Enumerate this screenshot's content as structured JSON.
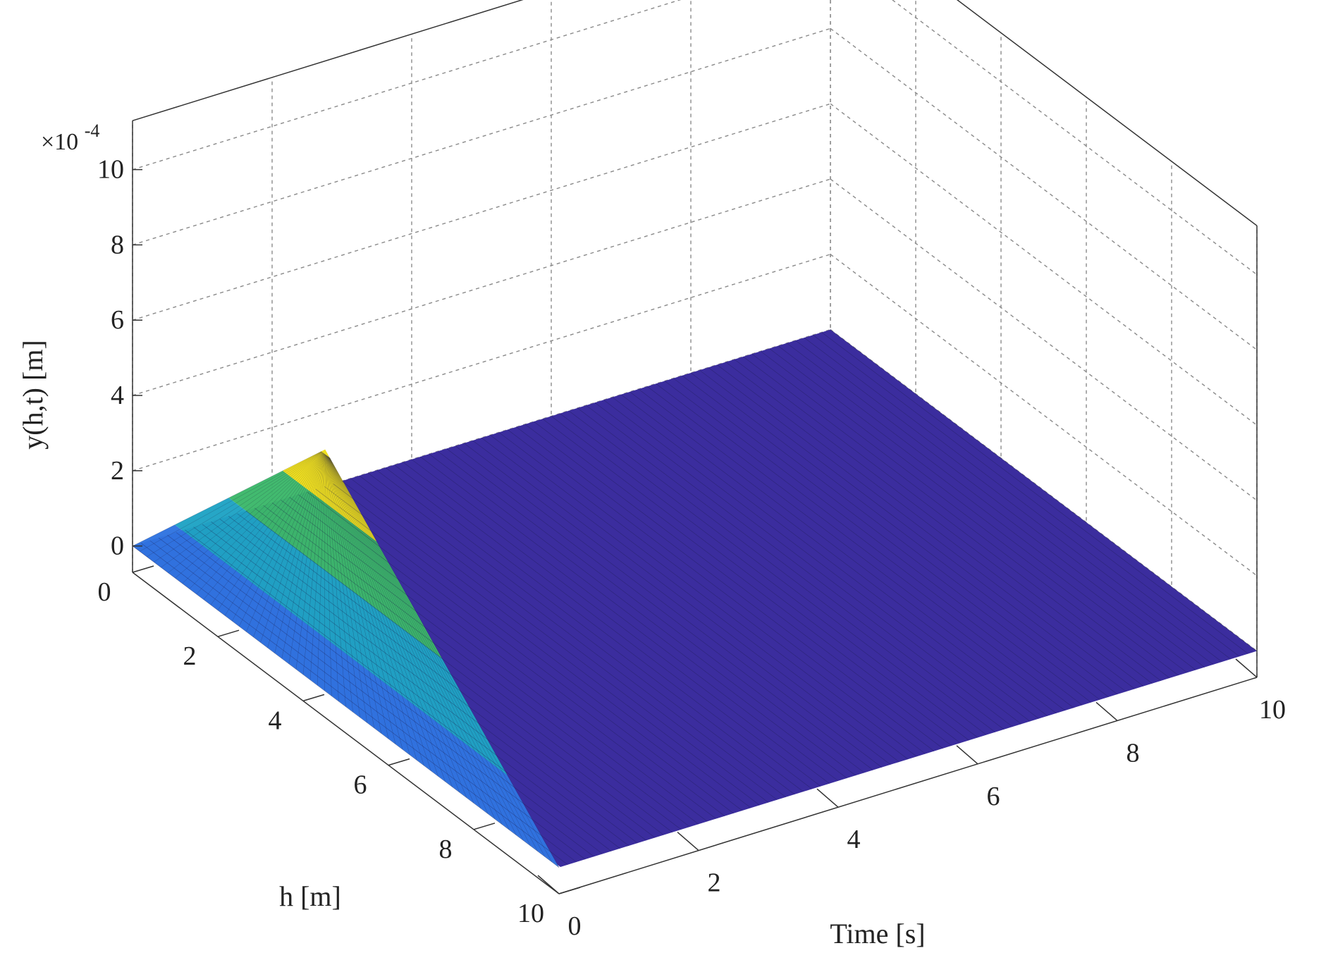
{
  "chart_data": {
    "type": "surface3d",
    "title": "",
    "xlabel": "Time [s]",
    "ylabel": "h [m]",
    "zlabel": "y(h,t) [m]",
    "z_multiplier": "×10",
    "z_multiplier_exponent": "-4",
    "xlim": [
      0,
      10
    ],
    "ylim": [
      0,
      10
    ],
    "zlim": [
      0,
      10
    ],
    "x_ticks": [
      "0",
      "2",
      "4",
      "6",
      "8",
      "10"
    ],
    "y_ticks": [
      "0",
      "2",
      "4",
      "6",
      "8",
      "10"
    ],
    "z_ticks": [
      "0",
      "2",
      "4",
      "6",
      "8",
      "10"
    ],
    "grid": true,
    "colormap": "parula",
    "colors": {
      "low": "#3b2d9e",
      "mid_low": "#2f74e0",
      "mid": "#1fa3c4",
      "mid_high": "#3cb86a",
      "high": "#d8c430",
      "peak": "#f0e020"
    },
    "surface_points": [
      {
        "t": 0,
        "h": 0,
        "y": 0
      },
      {
        "t": 0,
        "h": 4.5,
        "y": 6.4
      },
      {
        "t": 0,
        "h": 10,
        "y": 0
      },
      {
        "t": 10,
        "h": 0,
        "y": 0
      },
      {
        "t": 10,
        "h": 10,
        "y": 0
      }
    ]
  }
}
